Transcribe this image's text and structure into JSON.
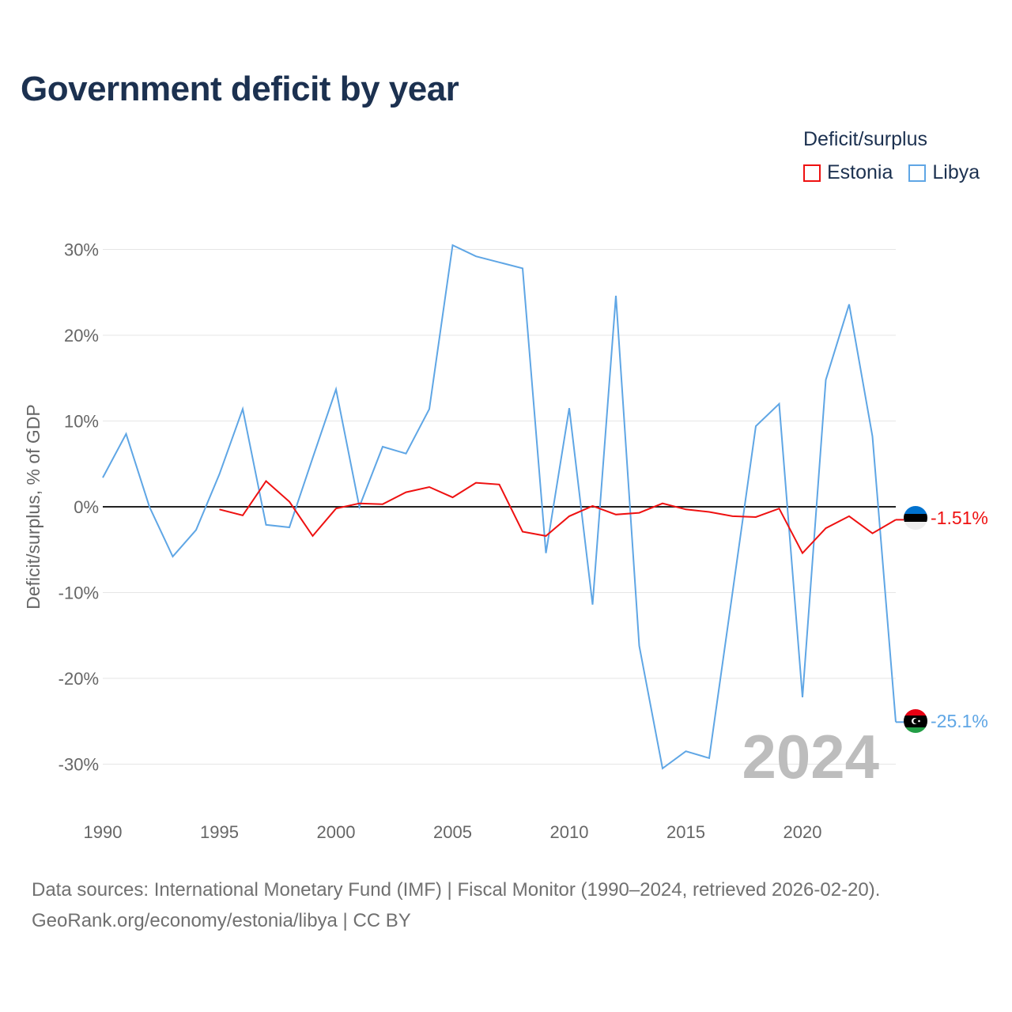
{
  "title": "Government deficit by year",
  "legend": {
    "title": "Deficit/surplus",
    "items": [
      {
        "label": "Estonia",
        "color": "#ee1111"
      },
      {
        "label": "Libya",
        "color": "#5fa6e5"
      }
    ]
  },
  "year_watermark": "2024",
  "sources": {
    "line1": "Data sources: International Monetary Fund (IMF) | Fiscal Monitor (1990–2024, retrieved 2026-02-20).",
    "line2": "GeoRank.org/economy/estonia/libya | CC BY"
  },
  "chart_data": {
    "type": "line",
    "title": "Government deficit by year",
    "xlabel": "",
    "ylabel": "Deficit/surplus, % of GDP",
    "xlim": [
      1990,
      2024
    ],
    "ylim": [
      -35,
      30
    ],
    "x_ticks": [
      1990,
      1995,
      2000,
      2005,
      2010,
      2015,
      2020
    ],
    "y_ticks": [
      30,
      20,
      10,
      0,
      -10,
      -20,
      -30
    ],
    "y_tick_labels": [
      "30%",
      "20%",
      "10%",
      "0%",
      "-10%",
      "-20%",
      "-30%"
    ],
    "series": [
      {
        "name": "Estonia",
        "color": "#ee1111",
        "end_label": "-1.51%",
        "x": [
          1995,
          1996,
          1997,
          1998,
          1999,
          2000,
          2001,
          2002,
          2003,
          2004,
          2005,
          2006,
          2007,
          2008,
          2009,
          2010,
          2011,
          2012,
          2013,
          2014,
          2015,
          2016,
          2017,
          2018,
          2019,
          2020,
          2021,
          2022,
          2023,
          2024
        ],
        "values": [
          -0.3,
          -1.0,
          3.0,
          0.6,
          -3.4,
          -0.2,
          0.4,
          0.3,
          1.7,
          2.3,
          1.1,
          2.8,
          2.6,
          -2.9,
          -3.4,
          -1.1,
          0.1,
          -0.9,
          -0.7,
          0.4,
          -0.3,
          -0.6,
          -1.1,
          -1.2,
          -0.2,
          -5.4,
          -2.5,
          -1.1,
          -3.1,
          -1.51
        ]
      },
      {
        "name": "Libya",
        "color": "#5fa6e5",
        "end_label": "-25.1%",
        "x": [
          1990,
          1991,
          1992,
          1993,
          1994,
          1995,
          1996,
          1997,
          1998,
          1999,
          2000,
          2001,
          2002,
          2003,
          2004,
          2005,
          2006,
          2007,
          2008,
          2009,
          2010,
          2011,
          2012,
          2013,
          2014,
          2015,
          2016,
          2017,
          2018,
          2019,
          2020,
          2021,
          2022,
          2023,
          2024
        ],
        "values": [
          3.4,
          8.5,
          0.0,
          -5.8,
          -2.7,
          3.8,
          11.4,
          -2.1,
          -2.4,
          5.7,
          13.7,
          0.0,
          7.0,
          6.2,
          11.4,
          30.5,
          29.2,
          28.5,
          27.8,
          -5.4,
          11.5,
          -11.4,
          24.6,
          -16.2,
          -30.5,
          -28.5,
          -29.3,
          -10.0,
          9.4,
          12.0,
          -22.2,
          14.8,
          23.6,
          8.2,
          -25.1
        ]
      }
    ]
  }
}
